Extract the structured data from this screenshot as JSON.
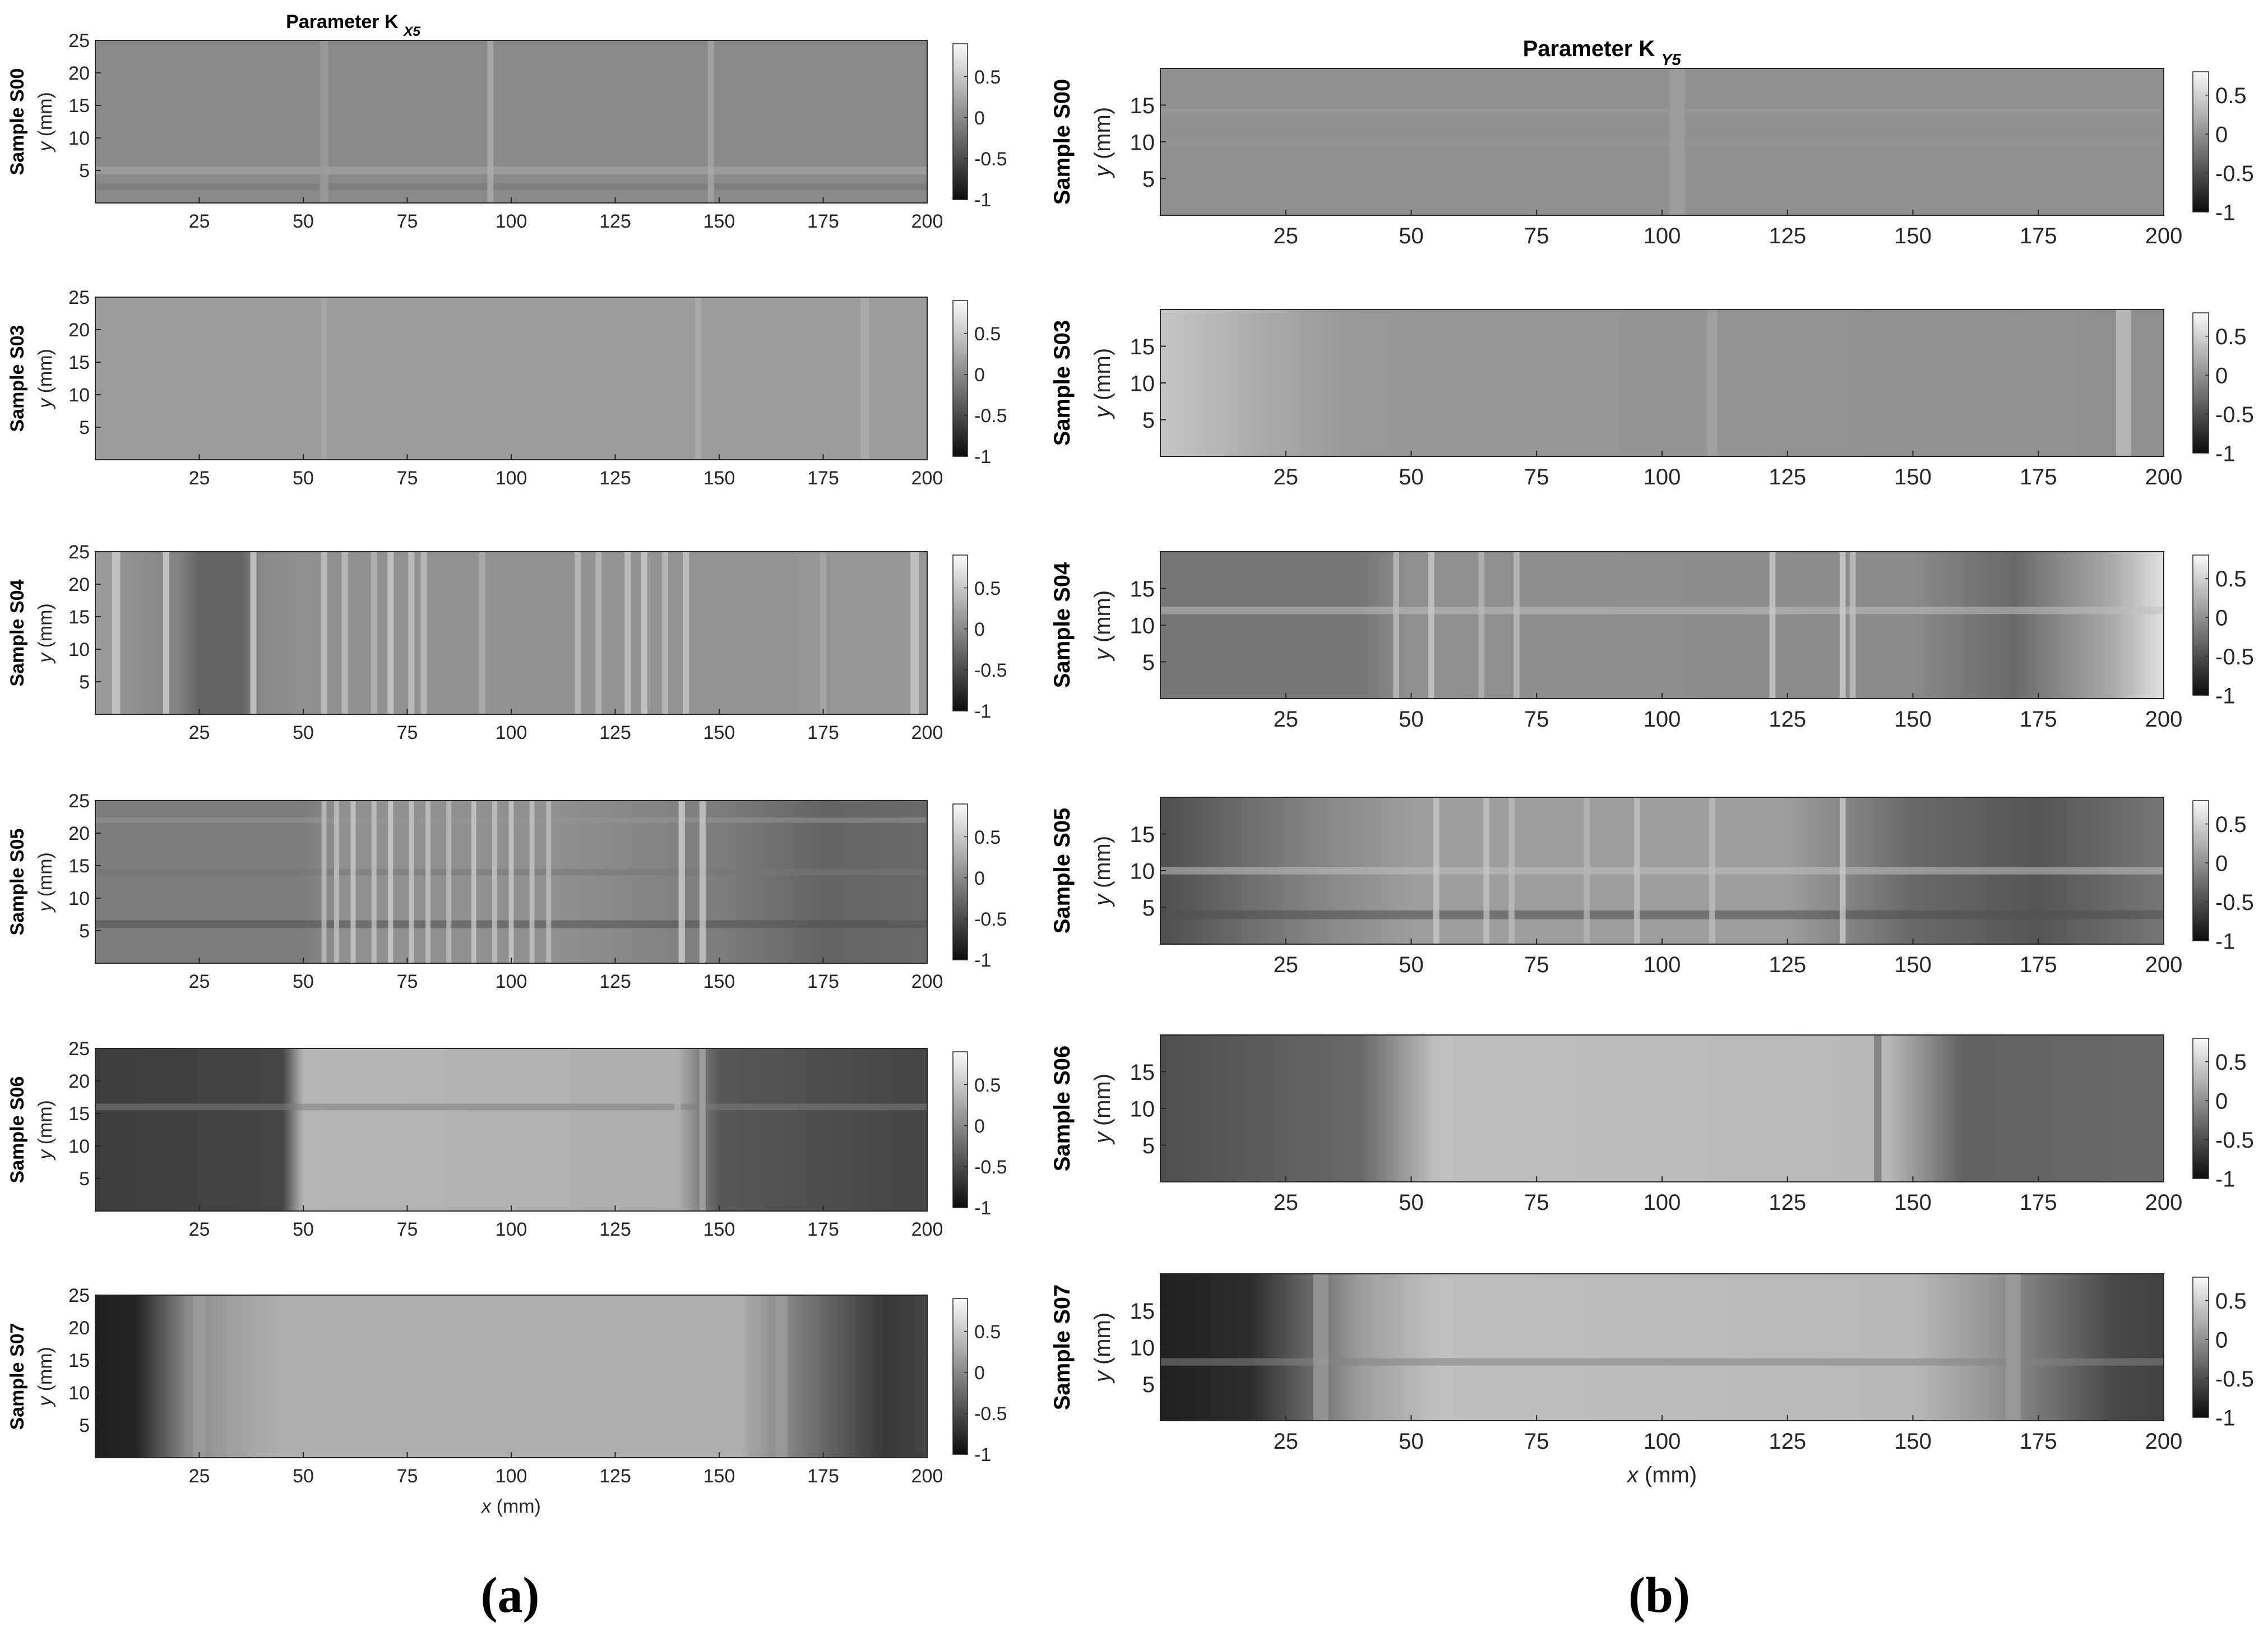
{
  "figure": {
    "panel_a_caption": "(a)",
    "panel_b_caption": "(b)"
  },
  "chart_data": [
    {
      "type": "heatmap",
      "panel": "a",
      "title": "Parameter K",
      "title_subscript": "X5",
      "xlabel_var": "x",
      "xlabel_unit": " (mm)",
      "ylabel_var": "y",
      "ylabel_unit": " (mm)",
      "xlim": [
        0,
        200
      ],
      "ylim": [
        0,
        25
      ],
      "xticks": [
        25,
        50,
        75,
        100,
        125,
        150,
        175,
        200
      ],
      "yticks": [
        5,
        10,
        15,
        20,
        25
      ],
      "colorbar": {
        "ticks": [
          0.5,
          0,
          -0.5,
          -1
        ],
        "tick_labels": [
          "0.5",
          "0",
          "-0.5",
          "-1"
        ],
        "clim": [
          -1,
          0.9
        ],
        "colormap": "gray"
      },
      "rows": [
        {
          "label": "Sample S00",
          "base_level": 0.0,
          "profile": [
            [
              0,
              0.0
            ],
            [
              200,
              0.0
            ]
          ],
          "stripes": [
            [
              95,
              0.3,
              1.5
            ],
            [
              148,
              0.25,
              1.5
            ],
            [
              55,
              0.15,
              2
            ]
          ],
          "hbands": [
            [
              5,
              0.25,
              1.2
            ],
            [
              2.5,
              -0.15,
              1
            ]
          ]
        },
        {
          "label": "Sample S03",
          "base_level": 0.1,
          "profile": [
            [
              0,
              0.15
            ],
            [
              200,
              0.15
            ]
          ],
          "stripes": [
            [
              55,
              0.25,
              1.5
            ],
            [
              145,
              0.3,
              1.5
            ],
            [
              185,
              0.3,
              2
            ]
          ],
          "hbands": [
            [
              21.5,
              0.15,
              0.8
            ]
          ]
        },
        {
          "label": "Sample S04",
          "base_level": 0.0,
          "profile": [
            [
              0,
              0.15
            ],
            [
              20,
              -0.05
            ],
            [
              25,
              -0.3
            ],
            [
              35,
              -0.3
            ],
            [
              40,
              0.0
            ],
            [
              50,
              0.05
            ],
            [
              200,
              0.1
            ]
          ],
          "stripes": [
            [
              5,
              0.55,
              2
            ],
            [
              17,
              0.6,
              1.5
            ],
            [
              38,
              0.6,
              1.5
            ],
            [
              55,
              0.5,
              1.5
            ],
            [
              60,
              0.45,
              1.5
            ],
            [
              67,
              0.4,
              1.5
            ],
            [
              71,
              0.55,
              1.5
            ],
            [
              76,
              0.5,
              1.5
            ],
            [
              79,
              0.45,
              1.5
            ],
            [
              93,
              0.3,
              1.5
            ],
            [
              116,
              0.45,
              1.5
            ],
            [
              121,
              0.4,
              1.5
            ],
            [
              128,
              0.5,
              1.5
            ],
            [
              132,
              0.55,
              1.5
            ],
            [
              137,
              0.45,
              1.5
            ],
            [
              142,
              0.5,
              1.5
            ],
            [
              175,
              0.25,
              1.5
            ],
            [
              197,
              0.55,
              2
            ]
          ],
          "hbands": []
        },
        {
          "label": "Sample S05",
          "base_level": -0.15,
          "profile": [
            [
              0,
              -0.1
            ],
            [
              50,
              -0.1
            ],
            [
              60,
              0.05
            ],
            [
              110,
              0.05
            ],
            [
              150,
              -0.1
            ],
            [
              175,
              -0.3
            ],
            [
              200,
              -0.25
            ]
          ],
          "stripes": [
            [
              55,
              0.45,
              1.2
            ],
            [
              58,
              0.5,
              1.2
            ],
            [
              62,
              0.55,
              1.2
            ],
            [
              67,
              0.5,
              1.2
            ],
            [
              71,
              0.6,
              1.2
            ],
            [
              76,
              0.55,
              1.2
            ],
            [
              80,
              0.5,
              1.2
            ],
            [
              85,
              0.45,
              1.2
            ],
            [
              91,
              0.55,
              1.2
            ],
            [
              96,
              0.5,
              1.2
            ],
            [
              100,
              0.55,
              1.2
            ],
            [
              105,
              0.5,
              1.2
            ],
            [
              109,
              0.45,
              1.2
            ],
            [
              141,
              0.6,
              1.5
            ],
            [
              146,
              0.55,
              1.5
            ]
          ],
          "hbands": [
            [
              6,
              -0.45,
              1.2
            ],
            [
              14,
              -0.15,
              1
            ],
            [
              22,
              0.1,
              0.8
            ]
          ]
        },
        {
          "label": "Sample S06",
          "base_level": -0.55,
          "profile": [
            [
              0,
              -0.6
            ],
            [
              45,
              -0.55
            ],
            [
              50,
              0.35
            ],
            [
              140,
              0.3
            ],
            [
              150,
              -0.4
            ],
            [
              200,
              -0.55
            ]
          ],
          "stripes": [
            [
              140,
              0.3,
              1.5
            ],
            [
              146,
              0.25,
              1.5
            ]
          ],
          "hbands": [
            [
              16,
              -0.1,
              1
            ]
          ]
        },
        {
          "label": "Sample S07",
          "base_level": 0.25,
          "profile": [
            [
              0,
              -0.85
            ],
            [
              10,
              -0.8
            ],
            [
              22,
              0.0
            ],
            [
              35,
              0.2
            ],
            [
              45,
              0.3
            ],
            [
              155,
              0.3
            ],
            [
              165,
              0.0
            ],
            [
              180,
              -0.4
            ],
            [
              190,
              -0.65
            ],
            [
              200,
              -0.55
            ]
          ],
          "stripes": [
            [
              25,
              0.15,
              3
            ],
            [
              33,
              0.2,
              3
            ],
            [
              158,
              0.2,
              3
            ],
            [
              165,
              0.15,
              3
            ]
          ],
          "hbands": []
        }
      ]
    },
    {
      "type": "heatmap",
      "panel": "b",
      "title": "Parameter K",
      "title_subscript": "Y5",
      "xlabel_var": "x",
      "xlabel_unit": " (mm)",
      "ylabel_var": "y",
      "ylabel_unit": " (mm)",
      "xlim": [
        0,
        200
      ],
      "ylim": [
        0,
        20
      ],
      "xticks": [
        25,
        50,
        75,
        100,
        125,
        150,
        175,
        200
      ],
      "yticks": [
        5,
        10,
        15
      ],
      "colorbar": {
        "ticks": [
          0.5,
          0,
          -0.5,
          -1
        ],
        "tick_labels": [
          "0.5",
          "0",
          "-0.5",
          "-1"
        ],
        "clim": [
          -1,
          0.8
        ],
        "colormap": "gray"
      },
      "rows": [
        {
          "label": "Sample S00",
          "base_level": 0.05,
          "profile": [
            [
              0,
              0.0
            ],
            [
              200,
              0.0
            ]
          ],
          "stripes": [
            [
              103,
              0.12,
              3
            ]
          ],
          "hbands": [
            [
              10,
              0.05,
              1
            ],
            [
              14,
              0.05,
              1
            ]
          ]
        },
        {
          "label": "Sample S03",
          "base_level": 0.05,
          "profile": [
            [
              0,
              0.4
            ],
            [
              20,
              0.2
            ],
            [
              40,
              0.05
            ],
            [
              200,
              0.0
            ]
          ],
          "stripes": [
            [
              110,
              0.15,
              2
            ],
            [
              192,
              0.35,
              3
            ]
          ],
          "hbands": []
        },
        {
          "label": "Sample S04",
          "base_level": -0.05,
          "profile": [
            [
              0,
              -0.2
            ],
            [
              40,
              -0.2
            ],
            [
              50,
              0.0
            ],
            [
              150,
              -0.05
            ],
            [
              170,
              -0.3
            ],
            [
              190,
              0.2
            ],
            [
              200,
              0.6
            ]
          ],
          "stripes": [
            [
              47,
              0.35,
              1.2
            ],
            [
              54,
              0.45,
              1.2
            ],
            [
              64,
              0.3,
              1.2
            ],
            [
              71,
              0.35,
              1.2
            ],
            [
              122,
              0.45,
              1.2
            ],
            [
              136,
              0.5,
              1.2
            ],
            [
              138,
              0.4,
              1.2
            ]
          ],
          "hbands": [
            [
              12,
              0.35,
              1
            ]
          ]
        },
        {
          "label": "Sample S05",
          "base_level": -0.05,
          "profile": [
            [
              0,
              -0.5
            ],
            [
              30,
              -0.1
            ],
            [
              50,
              0.1
            ],
            [
              125,
              0.1
            ],
            [
              150,
              -0.3
            ],
            [
              175,
              -0.45
            ],
            [
              200,
              -0.2
            ]
          ],
          "stripes": [
            [
              55,
              0.45,
              1.2
            ],
            [
              65,
              0.4,
              1.2
            ],
            [
              70,
              0.35,
              1.2
            ],
            [
              85,
              0.3,
              1.2
            ],
            [
              95,
              0.4,
              1.2
            ],
            [
              110,
              0.35,
              1.2
            ],
            [
              136,
              0.45,
              1.2
            ]
          ],
          "hbands": [
            [
              4,
              -0.5,
              1.2
            ],
            [
              10,
              0.35,
              1
            ]
          ]
        },
        {
          "label": "Sample S06",
          "base_level": 0.35,
          "profile": [
            [
              0,
              -0.5
            ],
            [
              40,
              -0.3
            ],
            [
              55,
              0.35
            ],
            [
              145,
              0.3
            ],
            [
              160,
              -0.35
            ],
            [
              200,
              -0.3
            ]
          ],
          "stripes": [
            [
              143,
              -0.2,
              1.5
            ]
          ],
          "hbands": []
        },
        {
          "label": "Sample S07",
          "base_level": 0.3,
          "profile": [
            [
              0,
              -0.85
            ],
            [
              18,
              -0.75
            ],
            [
              30,
              -0.3
            ],
            [
              40,
              0.1
            ],
            [
              55,
              0.35
            ],
            [
              150,
              0.3
            ],
            [
              165,
              0.05
            ],
            [
              180,
              -0.3
            ],
            [
              190,
              -0.55
            ],
            [
              200,
              -0.6
            ]
          ],
          "stripes": [
            [
              32,
              0.1,
              3
            ],
            [
              170,
              0.1,
              3
            ]
          ],
          "hbands": [
            [
              8,
              -0.1,
              1
            ]
          ]
        }
      ]
    }
  ]
}
